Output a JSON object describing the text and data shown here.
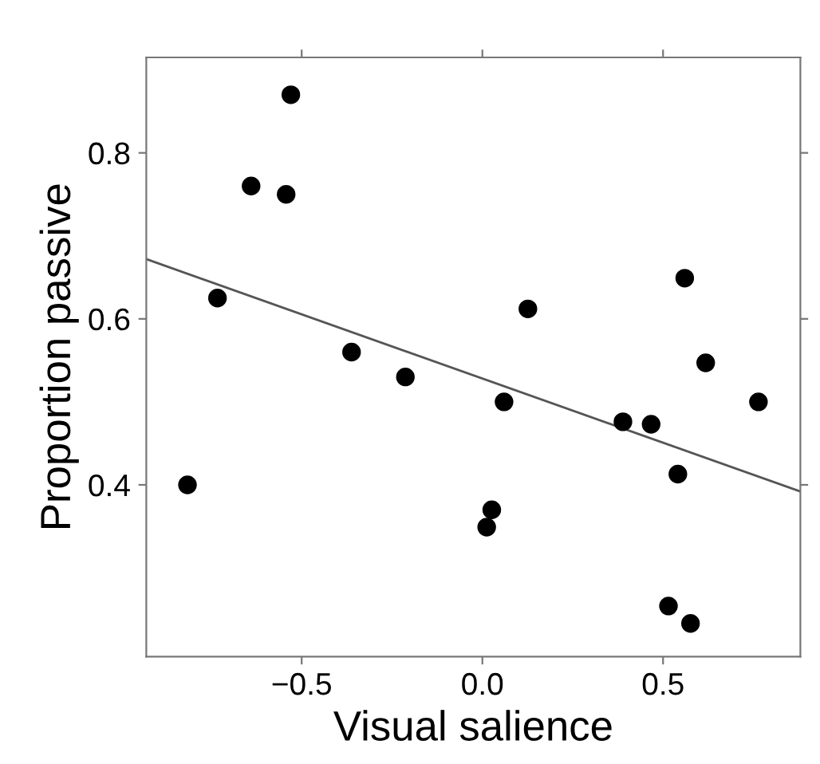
{
  "chart_data": {
    "type": "scatter",
    "xlabel": "Visual salience",
    "ylabel": "Proportion passive",
    "xlim": [
      -0.93,
      0.88
    ],
    "ylim": [
      0.193,
      0.915
    ],
    "xticks": [
      {
        "value": -0.5,
        "label": "−0.5"
      },
      {
        "value": 0.0,
        "label": "0.0"
      },
      {
        "value": 0.5,
        "label": "0.5"
      }
    ],
    "yticks": [
      0.4,
      0.6,
      0.8
    ],
    "grid": false,
    "legend": false,
    "series": [
      {
        "marker": "circle",
        "color": "#000000",
        "x": [
          -0.816,
          -0.733,
          -0.64,
          -0.543,
          -0.53,
          -0.362,
          -0.213,
          0.06,
          0.126,
          0.026,
          0.012,
          0.389,
          0.467,
          0.56,
          0.618,
          0.764,
          0.541,
          0.515,
          0.576
        ],
        "values": [
          0.4,
          0.625,
          0.76,
          0.75,
          0.87,
          0.56,
          0.53,
          0.5,
          0.612,
          0.37,
          0.349,
          0.476,
          0.473,
          0.649,
          0.547,
          0.5,
          0.413,
          0.254,
          0.233
        ]
      },
      {
        "type": "line",
        "color": "#555555",
        "line_style": "solid",
        "x": [
          -0.93,
          0.88
        ],
        "values": [
          0.672,
          0.392
        ]
      }
    ]
  }
}
